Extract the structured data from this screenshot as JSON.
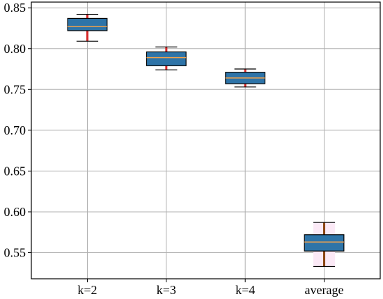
{
  "chart_data": {
    "type": "box",
    "categories": [
      "k=2",
      "k=3",
      "k=4",
      "average"
    ],
    "boxes": [
      {
        "min": 0.809,
        "q1": 0.822,
        "median": 0.827,
        "q3": 0.837,
        "max": 0.842
      },
      {
        "min": 0.774,
        "q1": 0.779,
        "median": 0.789,
        "q3": 0.796,
        "max": 0.802
      },
      {
        "min": 0.753,
        "q1": 0.757,
        "median": 0.764,
        "q3": 0.771,
        "max": 0.775
      },
      {
        "min": 0.533,
        "q1": 0.552,
        "median": 0.563,
        "q3": 0.572,
        "max": 0.587
      }
    ],
    "ylim": [
      0.518,
      0.857
    ],
    "yticks": [
      0.55,
      0.6,
      0.65,
      0.7,
      0.75,
      0.8,
      0.85
    ],
    "ytick_labels": [
      "0.55",
      "0.60",
      "0.65",
      "0.70",
      "0.75",
      "0.80",
      "0.85"
    ],
    "grid": true,
    "title": "",
    "xlabel": "",
    "ylabel": "",
    "colors": {
      "box_fill": "#2e74a8",
      "box_edge": "#000000",
      "median": "#f2a24b",
      "whisker_top3": "#d62728",
      "whisker_average": "#8b4513",
      "cap": "#000000",
      "grid": "#b0b0b0",
      "average_shade": "#fbe9f6"
    }
  }
}
